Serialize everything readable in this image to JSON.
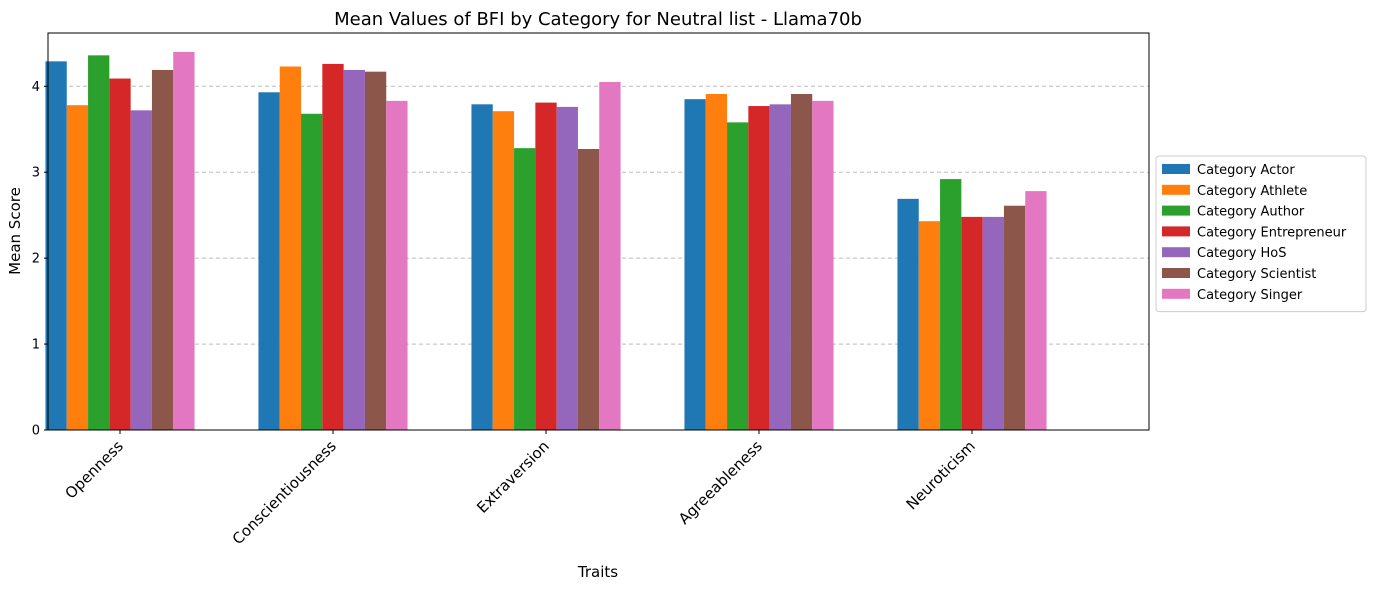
{
  "chart_data": {
    "type": "bar",
    "title": "Mean Values of BFI by Category for Neutral list - Llama70b",
    "xlabel": "Traits",
    "ylabel": "Mean Score",
    "categories": [
      "Openness",
      "Conscientiousness",
      "Extraversion",
      "Agreeableness",
      "Neuroticism"
    ],
    "ylim": [
      0,
      4.62
    ],
    "yticks": [
      0,
      1,
      2,
      3,
      4
    ],
    "grid": "y-dashed",
    "legend_position": "right",
    "series": [
      {
        "name": "Category Actor",
        "color": "#1f77b4",
        "values": [
          4.29,
          3.93,
          3.79,
          3.85,
          2.69
        ]
      },
      {
        "name": "Category Athlete",
        "color": "#ff7f0e",
        "values": [
          3.78,
          4.23,
          3.71,
          3.91,
          2.43
        ]
      },
      {
        "name": "Category Author",
        "color": "#2ca02c",
        "values": [
          4.36,
          3.68,
          3.28,
          3.58,
          2.92
        ]
      },
      {
        "name": "Category Entrepreneur",
        "color": "#d62728",
        "values": [
          4.09,
          4.26,
          3.81,
          3.77,
          2.48
        ]
      },
      {
        "name": "Category HoS",
        "color": "#9467bd",
        "values": [
          3.72,
          4.19,
          3.76,
          3.79,
          2.48
        ]
      },
      {
        "name": "Category Scientist",
        "color": "#8c564b",
        "values": [
          4.19,
          4.17,
          3.27,
          3.91,
          2.61
        ]
      },
      {
        "name": "Category Singer",
        "color": "#e377c2",
        "values": [
          4.4,
          3.83,
          4.05,
          3.83,
          2.78
        ]
      }
    ]
  }
}
